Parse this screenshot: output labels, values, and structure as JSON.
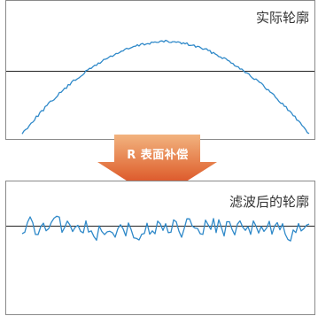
{
  "top_panel": {
    "label": "实际轮廓"
  },
  "arrow": {
    "label": "R 表面补偿"
  },
  "bottom_panel": {
    "label": "滤波后的轮廓"
  },
  "colors": {
    "curve": "#2f89c9",
    "baseline": "#222222",
    "border": "#8a8a8a",
    "arrow_top": "#f2b37f",
    "arrow_bottom": "#d43214"
  }
}
